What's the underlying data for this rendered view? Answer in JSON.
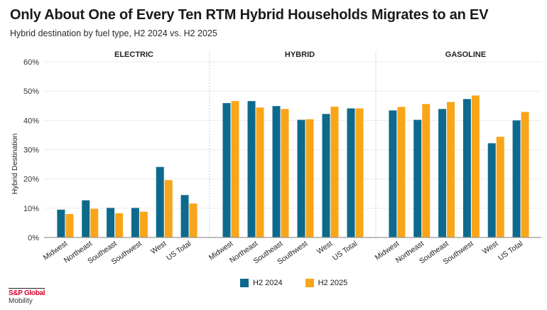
{
  "header": {
    "title": "Only About One of Every Ten RTM Hybrid Households Migrates to an EV",
    "subtitle": "Hybrid destination by fuel type, H2 2024 vs. H2 2025"
  },
  "logo": {
    "line1": "S&P Global",
    "line2": "Mobility"
  },
  "colors": {
    "h2_2024": "#0e6a8c",
    "h2_2025": "#f9a51a",
    "grid": "#ececec",
    "axis": "#999999",
    "divider": "#cccccc"
  },
  "chart_data": {
    "type": "bar",
    "title": "Only About One of Every Ten RTM Hybrid Households Migrates to an EV",
    "subtitle": "Hybrid destination by fuel type, H2 2024 vs. H2 2025",
    "xlabel": "",
    "ylabel": "Hybrid Destination",
    "ylim": [
      0,
      60
    ],
    "yticks": [
      0,
      10,
      20,
      30,
      40,
      50,
      60
    ],
    "ytick_labels": [
      "0%",
      "10%",
      "20%",
      "30%",
      "40%",
      "50%",
      "60%"
    ],
    "grid": true,
    "legend_position": "bottom-center",
    "legend": [
      "H2 2024",
      "H2 2025"
    ],
    "categories": [
      "Midwest",
      "Northeast",
      "Southeast",
      "Southwest",
      "West",
      "US Total"
    ],
    "panels": [
      {
        "name": "ELECTRIC",
        "series": [
          {
            "name": "H2 2024",
            "values": [
              9.5,
              12.7,
              10.1,
              10.1,
              24.1,
              14.5
            ]
          },
          {
            "name": "H2 2025",
            "values": [
              8.0,
              9.8,
              8.3,
              8.8,
              19.6,
              11.6
            ]
          }
        ]
      },
      {
        "name": "HYBRID",
        "series": [
          {
            "name": "H2 2024",
            "values": [
              45.9,
              46.6,
              44.9,
              40.2,
              42.2,
              44.1
            ]
          },
          {
            "name": "H2 2025",
            "values": [
              46.6,
              44.4,
              43.9,
              40.4,
              44.7,
              44.1
            ]
          }
        ]
      },
      {
        "name": "GASOLINE",
        "series": [
          {
            "name": "H2 2024",
            "values": [
              43.4,
              40.2,
              43.9,
              47.3,
              32.2,
              40.0
            ]
          },
          {
            "name": "H2 2025",
            "values": [
              44.6,
              45.6,
              46.3,
              48.5,
              34.4,
              42.9
            ]
          }
        ]
      }
    ]
  }
}
